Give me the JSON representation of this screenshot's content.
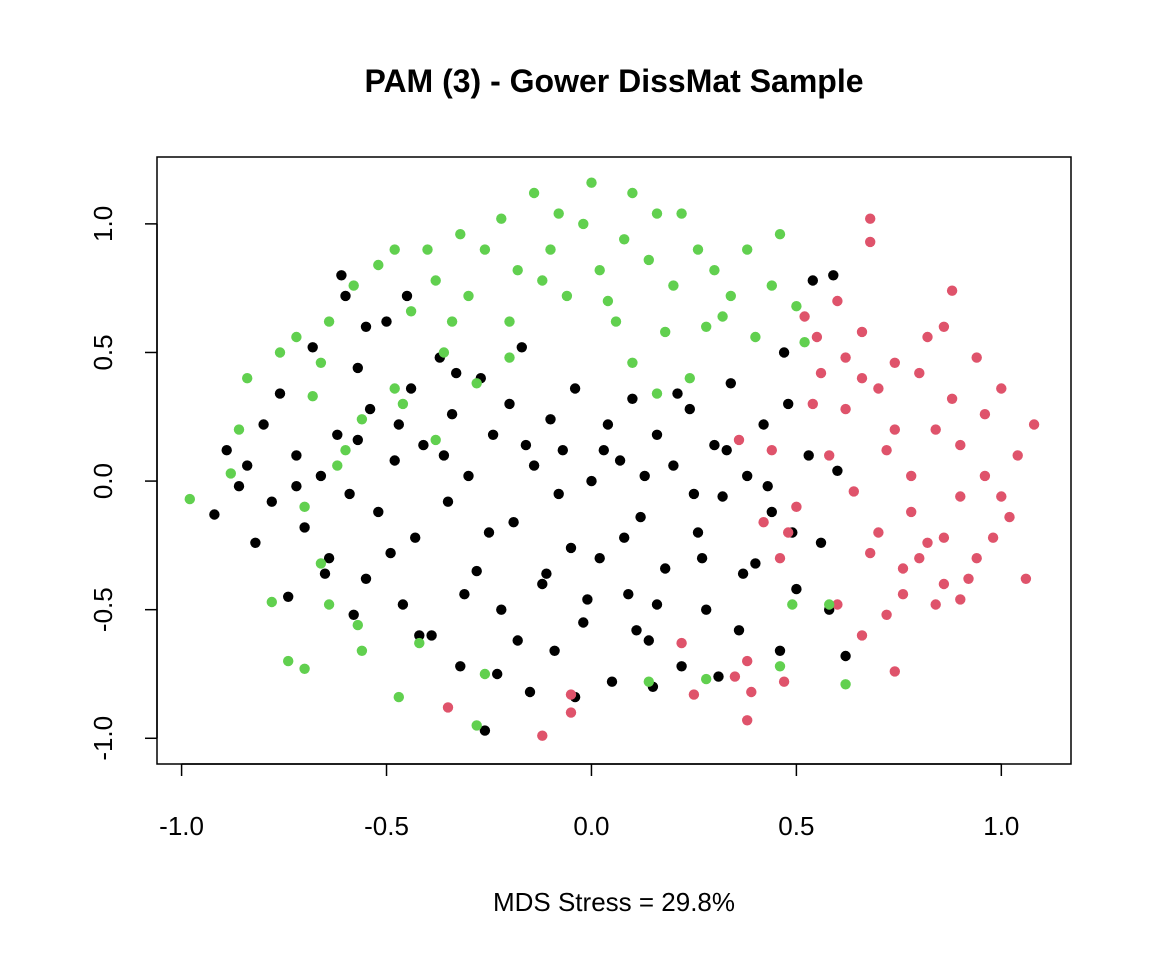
{
  "chart_data": {
    "type": "scatter",
    "title": "PAM (3) - Gower DissMat Sample",
    "xlabel": "MDS Stress = 29.8%",
    "ylabel": "",
    "xlim": [
      -1.06,
      1.17
    ],
    "ylim": [
      -1.1,
      1.26
    ],
    "x_ticks": [
      -1.0,
      -0.5,
      0.0,
      0.5,
      1.0
    ],
    "x_tick_labels": [
      "-1.0",
      "-0.5",
      "0.0",
      "0.5",
      "1.0"
    ],
    "y_ticks": [
      -1.0,
      -0.5,
      0.0,
      0.5,
      1.0
    ],
    "y_tick_labels": [
      "-1.0",
      "-0.5",
      "0.0",
      "0.5",
      "1.0"
    ],
    "grid": false,
    "legend": "none",
    "series": [
      {
        "color": "#000000",
        "points": [
          [
            -0.92,
            -0.13
          ],
          [
            -0.89,
            0.12
          ],
          [
            -0.86,
            -0.02
          ],
          [
            -0.84,
            0.06
          ],
          [
            -0.82,
            -0.24
          ],
          [
            -0.8,
            0.22
          ],
          [
            -0.78,
            -0.08
          ],
          [
            -0.76,
            0.34
          ],
          [
            -0.74,
            -0.45
          ],
          [
            -0.72,
            0.1
          ],
          [
            -0.7,
            -0.18
          ],
          [
            -0.68,
            0.52
          ],
          [
            -0.66,
            0.02
          ],
          [
            -0.64,
            -0.3
          ],
          [
            -0.62,
            0.18
          ],
          [
            -0.6,
            0.72
          ],
          [
            -0.59,
            -0.05
          ],
          [
            -0.57,
            0.44
          ],
          [
            -0.55,
            -0.38
          ],
          [
            -0.54,
            0.28
          ],
          [
            -0.52,
            -0.12
          ],
          [
            -0.5,
            0.62
          ],
          [
            -0.48,
            0.08
          ],
          [
            -0.46,
            -0.48
          ],
          [
            -0.44,
            0.36
          ],
          [
            -0.43,
            -0.22
          ],
          [
            -0.41,
            0.14
          ],
          [
            -0.39,
            -0.6
          ],
          [
            -0.37,
            0.48
          ],
          [
            -0.35,
            -0.08
          ],
          [
            -0.34,
            0.26
          ],
          [
            -0.32,
            -0.72
          ],
          [
            -0.3,
            0.02
          ],
          [
            -0.28,
            -0.35
          ],
          [
            -0.27,
            0.4
          ],
          [
            -0.26,
            -0.97
          ],
          [
            -0.24,
            0.18
          ],
          [
            -0.22,
            -0.5
          ],
          [
            -0.2,
            0.3
          ],
          [
            -0.19,
            -0.16
          ],
          [
            -0.17,
            0.52
          ],
          [
            -0.15,
            -0.82
          ],
          [
            -0.14,
            0.06
          ],
          [
            -0.12,
            -0.4
          ],
          [
            -0.1,
            0.24
          ],
          [
            -0.09,
            -0.66
          ],
          [
            -0.07,
            0.12
          ],
          [
            -0.05,
            -0.26
          ],
          [
            -0.04,
            0.36
          ],
          [
            -0.02,
            -0.55
          ],
          [
            0.0,
            0.0
          ],
          [
            0.02,
            -0.3
          ],
          [
            0.04,
            0.22
          ],
          [
            0.05,
            -0.78
          ],
          [
            0.07,
            0.08
          ],
          [
            0.09,
            -0.44
          ],
          [
            0.1,
            0.32
          ],
          [
            0.12,
            -0.14
          ],
          [
            0.14,
            -0.62
          ],
          [
            0.16,
            0.18
          ],
          [
            0.18,
            -0.34
          ],
          [
            0.2,
            0.06
          ],
          [
            0.22,
            -0.72
          ],
          [
            0.24,
            0.28
          ],
          [
            0.26,
            -0.2
          ],
          [
            0.28,
            -0.5
          ],
          [
            0.3,
            0.14
          ],
          [
            0.32,
            -0.06
          ],
          [
            0.34,
            0.38
          ],
          [
            0.36,
            -0.58
          ],
          [
            0.38,
            0.02
          ],
          [
            0.4,
            -0.32
          ],
          [
            0.42,
            0.22
          ],
          [
            0.44,
            -0.12
          ],
          [
            0.46,
            -0.66
          ],
          [
            0.48,
            0.3
          ],
          [
            0.5,
            -0.42
          ],
          [
            0.53,
            0.1
          ],
          [
            0.56,
            -0.24
          ],
          [
            0.58,
            -0.5
          ],
          [
            0.6,
            0.04
          ],
          [
            0.62,
            -0.68
          ],
          [
            0.54,
            0.78
          ],
          [
            0.59,
            0.8
          ],
          [
            0.47,
            0.5
          ],
          [
            -0.61,
            0.8
          ],
          [
            -0.55,
            0.6
          ],
          [
            -0.45,
            0.72
          ],
          [
            -0.36,
            0.1
          ],
          [
            -0.18,
            -0.62
          ],
          [
            -0.08,
            -0.05
          ],
          [
            0.08,
            -0.22
          ],
          [
            0.16,
            -0.48
          ],
          [
            0.25,
            -0.05
          ],
          [
            0.33,
            0.12
          ],
          [
            -0.65,
            -0.36
          ],
          [
            -0.57,
            0.16
          ],
          [
            -0.49,
            -0.28
          ],
          [
            -0.33,
            0.42
          ],
          [
            -0.25,
            -0.2
          ],
          [
            -0.11,
            -0.36
          ],
          [
            0.03,
            0.12
          ],
          [
            0.11,
            -0.58
          ],
          [
            0.21,
            0.34
          ],
          [
            0.37,
            -0.36
          ],
          [
            -0.42,
            -0.6
          ],
          [
            -0.23,
            -0.75
          ],
          [
            -0.04,
            -0.84
          ],
          [
            0.15,
            -0.8
          ],
          [
            0.31,
            -0.76
          ],
          [
            -0.72,
            -0.02
          ],
          [
            -0.58,
            -0.52
          ],
          [
            -0.47,
            0.22
          ],
          [
            -0.31,
            -0.44
          ],
          [
            -0.16,
            0.14
          ],
          [
            -0.01,
            -0.46
          ],
          [
            0.13,
            0.02
          ],
          [
            0.27,
            -0.3
          ],
          [
            0.43,
            -0.02
          ],
          [
            0.49,
            -0.2
          ]
        ]
      },
      {
        "color": "#DF536B",
        "points": [
          [
            0.68,
            1.02
          ],
          [
            0.68,
            0.93
          ],
          [
            0.88,
            0.74
          ],
          [
            0.82,
            0.56
          ],
          [
            0.74,
            0.46
          ],
          [
            0.94,
            0.48
          ],
          [
            1.0,
            0.36
          ],
          [
            1.08,
            0.22
          ],
          [
            1.04,
            0.1
          ],
          [
            0.96,
            0.02
          ],
          [
            0.9,
            -0.06
          ],
          [
            1.02,
            -0.14
          ],
          [
            0.86,
            -0.22
          ],
          [
            0.8,
            -0.3
          ],
          [
            0.92,
            -0.38
          ],
          [
            0.76,
            -0.44
          ],
          [
            0.84,
            -0.48
          ],
          [
            1.06,
            -0.38
          ],
          [
            0.72,
            -0.52
          ],
          [
            0.66,
            -0.6
          ],
          [
            0.6,
            -0.48
          ],
          [
            0.7,
            -0.2
          ],
          [
            0.64,
            -0.04
          ],
          [
            0.58,
            0.1
          ],
          [
            0.62,
            0.28
          ],
          [
            0.56,
            0.42
          ],
          [
            0.52,
            0.64
          ],
          [
            0.6,
            0.7
          ],
          [
            0.66,
            0.58
          ],
          [
            0.72,
            0.12
          ],
          [
            0.78,
            0.02
          ],
          [
            0.84,
            0.2
          ],
          [
            0.88,
            0.32
          ],
          [
            0.98,
            -0.22
          ],
          [
            0.94,
            -0.3
          ],
          [
            0.74,
            -0.74
          ],
          [
            0.86,
            -0.4
          ],
          [
            0.78,
            -0.12
          ],
          [
            0.7,
            0.36
          ],
          [
            0.8,
            0.42
          ],
          [
            0.9,
            0.14
          ],
          [
            0.96,
            0.26
          ],
          [
            1.0,
            -0.06
          ],
          [
            0.68,
            -0.28
          ],
          [
            0.76,
            -0.34
          ],
          [
            0.44,
            0.12
          ],
          [
            0.36,
            0.16
          ],
          [
            0.48,
            -0.2
          ],
          [
            0.46,
            -0.3
          ],
          [
            0.42,
            -0.16
          ],
          [
            0.5,
            -0.1
          ],
          [
            0.38,
            -0.7
          ],
          [
            0.35,
            -0.76
          ],
          [
            0.39,
            -0.82
          ],
          [
            0.47,
            -0.78
          ],
          [
            0.38,
            -0.93
          ],
          [
            0.25,
            -0.83
          ],
          [
            0.22,
            -0.63
          ],
          [
            0.55,
            0.56
          ],
          [
            0.54,
            0.3
          ],
          [
            -0.12,
            -0.99
          ],
          [
            -0.05,
            -0.9
          ],
          [
            -0.05,
            -0.83
          ],
          [
            -0.35,
            -0.88
          ],
          [
            0.86,
            0.6
          ],
          [
            0.74,
            0.2
          ],
          [
            0.62,
            0.48
          ],
          [
            0.66,
            0.4
          ],
          [
            0.9,
            -0.46
          ],
          [
            0.82,
            -0.24
          ]
        ]
      },
      {
        "color": "#61D04F",
        "points": [
          [
            -0.98,
            -0.07
          ],
          [
            -0.88,
            0.03
          ],
          [
            -0.86,
            0.2
          ],
          [
            -0.84,
            0.4
          ],
          [
            -0.78,
            -0.47
          ],
          [
            -0.74,
            -0.7
          ],
          [
            -0.7,
            -0.73
          ],
          [
            -0.72,
            0.56
          ],
          [
            -0.68,
            0.33
          ],
          [
            -0.64,
            0.62
          ],
          [
            -0.64,
            -0.48
          ],
          [
            -0.6,
            0.12
          ],
          [
            -0.58,
            0.76
          ],
          [
            -0.56,
            -0.66
          ],
          [
            -0.52,
            0.84
          ],
          [
            -0.48,
            0.9
          ],
          [
            -0.46,
            0.3
          ],
          [
            -0.44,
            0.66
          ],
          [
            -0.42,
            -0.63
          ],
          [
            -0.47,
            -0.84
          ],
          [
            -0.38,
            0.78
          ],
          [
            -0.36,
            0.5
          ],
          [
            -0.32,
            0.96
          ],
          [
            -0.3,
            0.72
          ],
          [
            -0.28,
            0.38
          ],
          [
            -0.26,
            0.9
          ],
          [
            -0.22,
            1.02
          ],
          [
            -0.2,
            0.62
          ],
          [
            -0.18,
            0.82
          ],
          [
            -0.14,
            1.12
          ],
          [
            -0.1,
            0.9
          ],
          [
            -0.06,
            0.72
          ],
          [
            -0.02,
            1.0
          ],
          [
            0.0,
            1.16
          ],
          [
            0.02,
            0.82
          ],
          [
            0.06,
            0.62
          ],
          [
            0.08,
            0.94
          ],
          [
            0.1,
            1.12
          ],
          [
            0.14,
            0.86
          ],
          [
            0.16,
            1.04
          ],
          [
            0.2,
            0.76
          ],
          [
            0.22,
            1.04
          ],
          [
            0.26,
            0.9
          ],
          [
            0.28,
            0.6
          ],
          [
            0.3,
            0.82
          ],
          [
            0.34,
            0.72
          ],
          [
            0.38,
            0.9
          ],
          [
            0.44,
            0.76
          ],
          [
            0.46,
            0.96
          ],
          [
            0.5,
            0.68
          ],
          [
            0.52,
            0.54
          ],
          [
            -0.48,
            0.36
          ],
          [
            -0.38,
            0.16
          ],
          [
            -0.2,
            0.48
          ],
          [
            0.1,
            0.46
          ],
          [
            0.16,
            0.34
          ],
          [
            0.24,
            0.4
          ],
          [
            -0.7,
            -0.1
          ],
          [
            -0.66,
            -0.32
          ],
          [
            -0.57,
            -0.56
          ],
          [
            -0.26,
            -0.75
          ],
          [
            -0.28,
            -0.95
          ],
          [
            0.14,
            -0.78
          ],
          [
            0.28,
            -0.77
          ],
          [
            0.46,
            -0.72
          ],
          [
            0.49,
            -0.48
          ],
          [
            0.58,
            -0.48
          ],
          [
            0.62,
            -0.79
          ],
          [
            -0.62,
            0.06
          ],
          [
            -0.56,
            0.24
          ],
          [
            -0.76,
            0.5
          ],
          [
            -0.66,
            0.46
          ],
          [
            -0.4,
            0.9
          ],
          [
            -0.12,
            0.78
          ],
          [
            0.04,
            0.7
          ],
          [
            0.18,
            0.58
          ],
          [
            0.32,
            0.64
          ],
          [
            0.4,
            0.56
          ],
          [
            -0.34,
            0.62
          ],
          [
            -0.08,
            1.04
          ]
        ]
      }
    ]
  }
}
